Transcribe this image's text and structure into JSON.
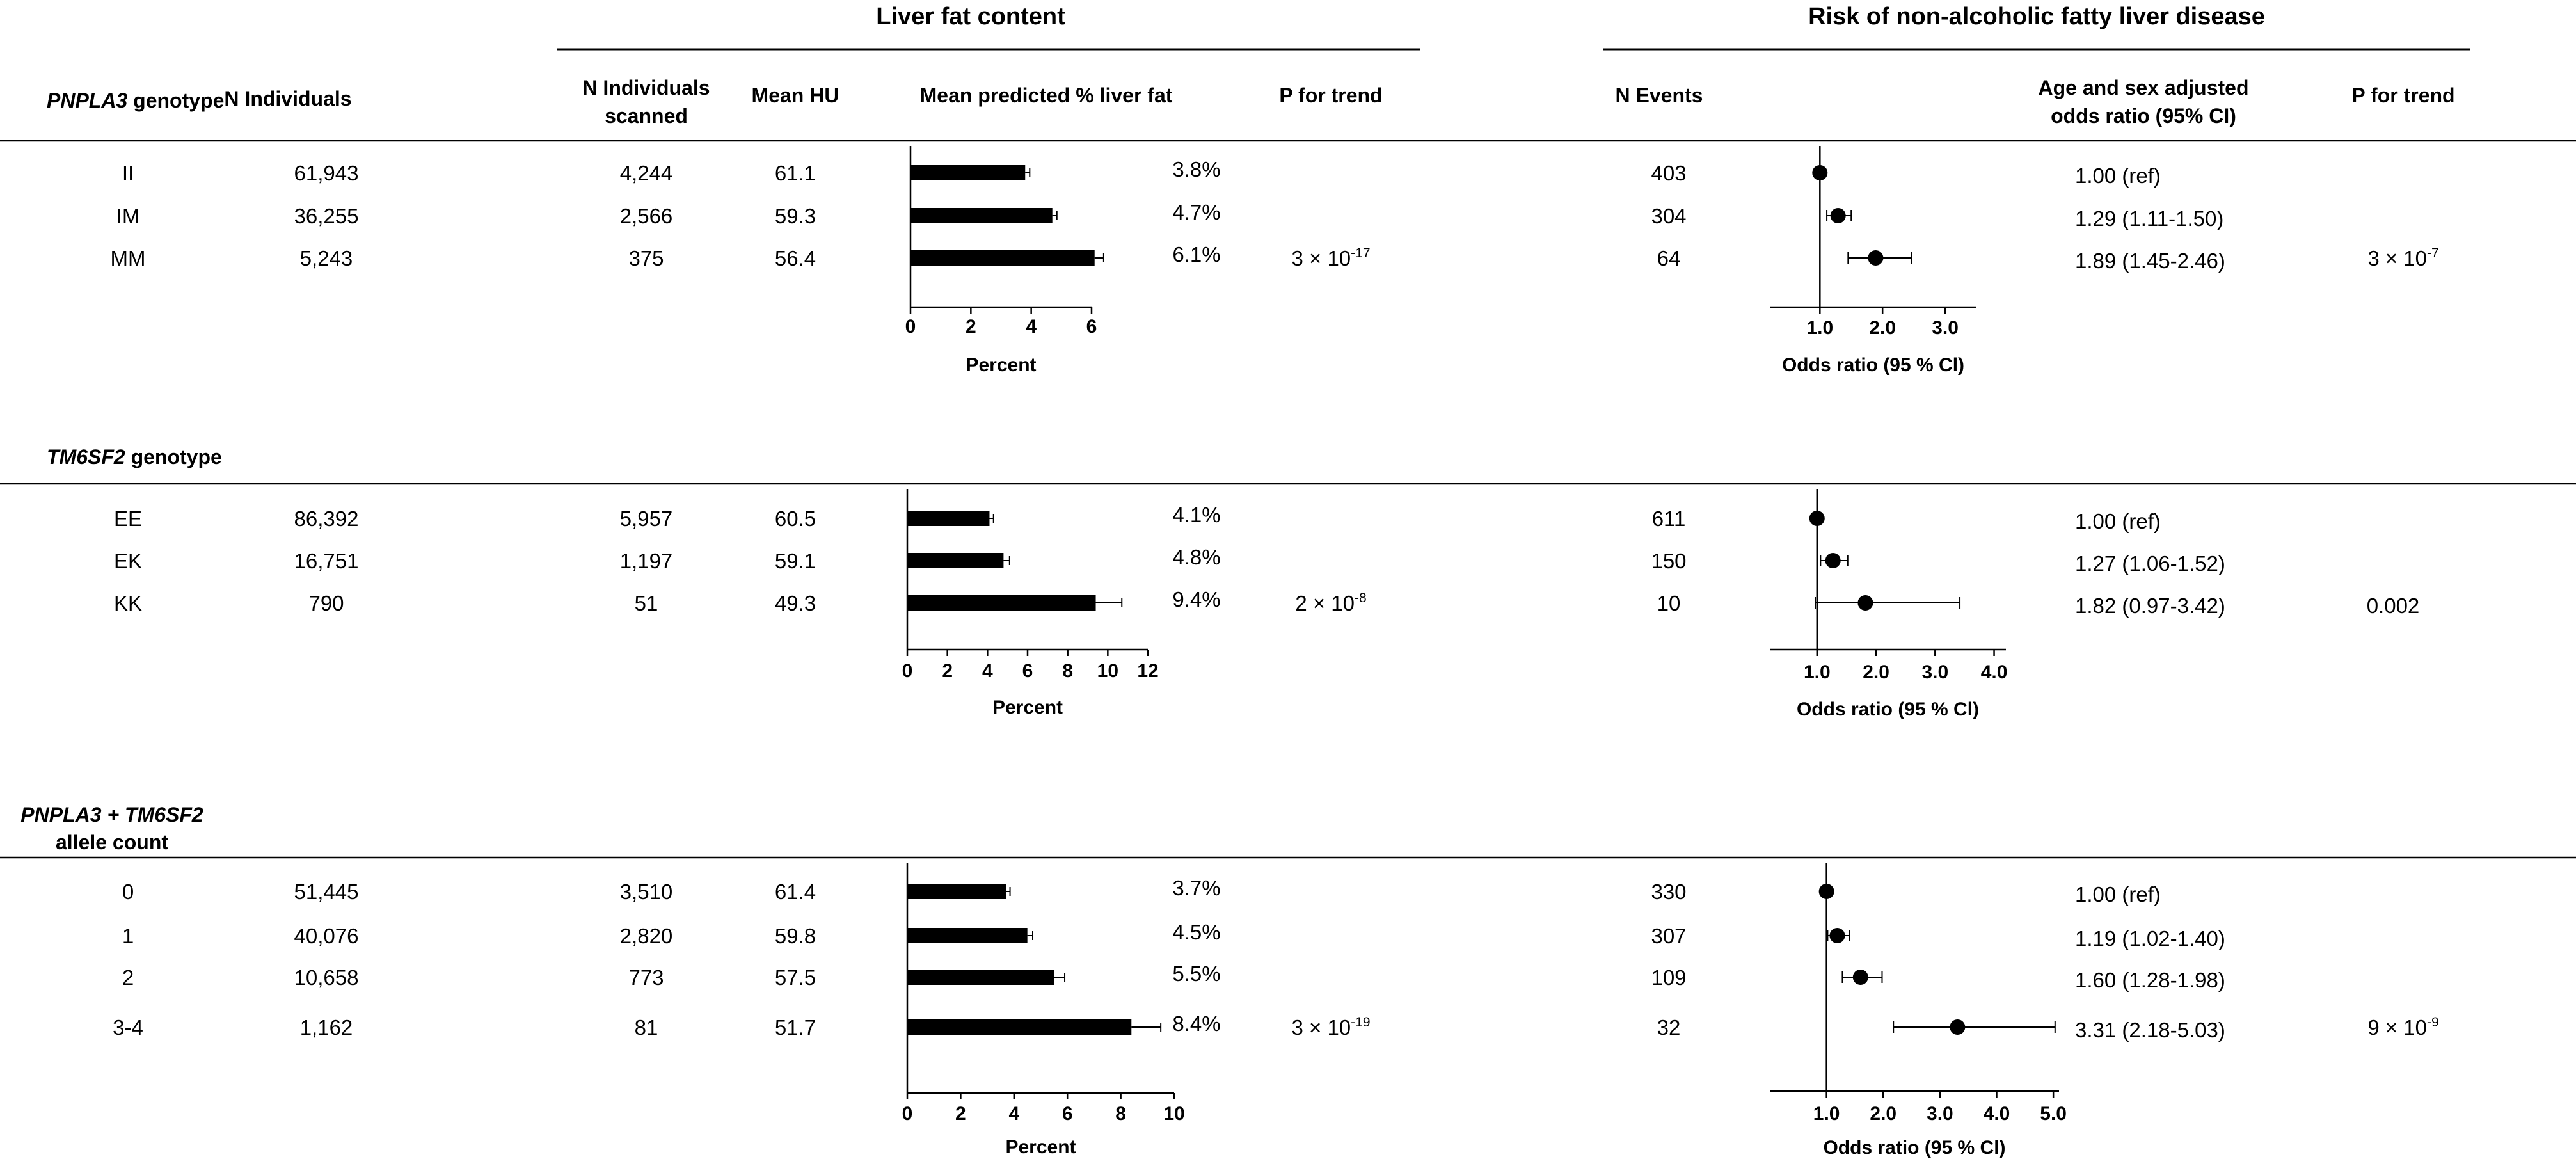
{
  "headers": {
    "liver_fat": "Liver fat content",
    "nafld_risk": "Risk of non-alcoholic fatty liver disease",
    "n_individuals": "N Individuals",
    "n_scanned_1": "N Individuals",
    "n_scanned_2": "scanned",
    "mean_hu": "Mean HU",
    "mean_pred": "Mean predicted % liver fat",
    "p_trend": "P for trend",
    "n_events": "N Events",
    "or_1": "Age and sex adjusted",
    "or_2": "odds ratio (95% CI)",
    "p_trend2": "P for trend"
  },
  "pct_suffix": "%",
  "chart_data": [
    {
      "type": "bar",
      "orientation": "horizontal",
      "group": "PNPLA3 genotype",
      "categories": [
        "II",
        "IM",
        "MM"
      ],
      "values": [
        3.8,
        4.7,
        6.1
      ],
      "error": [
        0.15,
        0.15,
        0.3
      ],
      "xlabel": "Percent",
      "xlim": [
        0,
        6
      ],
      "ticks": [
        0,
        2,
        4,
        6
      ]
    },
    {
      "type": "scatter",
      "subtype": "forest",
      "group": "PNPLA3 genotype",
      "categories": [
        "II",
        "IM",
        "MM"
      ],
      "or": [
        1.0,
        1.29,
        1.89
      ],
      "ci_low": [
        1.0,
        1.11,
        1.45
      ],
      "ci_high": [
        1.0,
        1.5,
        2.46
      ],
      "xlabel": "Odds ratio (95 % Cl)",
      "xlim": [
        0.2,
        3.5
      ],
      "ticks": [
        "1.0",
        "2.0",
        "3.0"
      ]
    },
    {
      "type": "bar",
      "orientation": "horizontal",
      "group": "TM6SF2 genotype",
      "categories": [
        "EE",
        "EK",
        "KK"
      ],
      "values": [
        4.1,
        4.8,
        9.4
      ],
      "error": [
        0.2,
        0.3,
        1.3
      ],
      "xlabel": "Percent",
      "xlim": [
        0,
        12
      ],
      "ticks": [
        0,
        2,
        4,
        6,
        8,
        10,
        12
      ]
    },
    {
      "type": "scatter",
      "subtype": "forest",
      "group": "TM6SF2 genotype",
      "categories": [
        "EE",
        "EK",
        "KK"
      ],
      "or": [
        1.0,
        1.27,
        1.82
      ],
      "ci_low": [
        1.0,
        1.06,
        0.97
      ],
      "ci_high": [
        1.0,
        1.52,
        3.42
      ],
      "xlabel": "Odds ratio (95 % Cl)",
      "xlim": [
        0.2,
        4.2
      ],
      "ticks": [
        "1.0",
        "2.0",
        "3.0",
        "4.0"
      ]
    },
    {
      "type": "bar",
      "orientation": "horizontal",
      "group": "PNPLA3 + TM6SF2 allele count",
      "categories": [
        "0",
        "1",
        "2",
        "3-4"
      ],
      "values": [
        3.7,
        4.5,
        5.5,
        8.4
      ],
      "error": [
        0.15,
        0.2,
        0.4,
        1.1
      ],
      "xlabel": "Percent",
      "xlim": [
        0,
        10
      ],
      "ticks": [
        0,
        2,
        4,
        6,
        8,
        10
      ]
    },
    {
      "type": "scatter",
      "subtype": "forest",
      "group": "PNPLA3 + TM6SF2 allele count",
      "categories": [
        "0",
        "1",
        "2",
        "3-4"
      ],
      "or": [
        1.0,
        1.19,
        1.6,
        3.31
      ],
      "ci_low": [
        1.0,
        1.02,
        1.28,
        2.18
      ],
      "ci_high": [
        1.0,
        1.4,
        1.98,
        5.03
      ],
      "xlabel": "Odds ratio (95 % Cl)",
      "xlim": [
        0.0,
        5.1
      ],
      "ticks": [
        "1.0",
        "2.0",
        "3.0",
        "4.0",
        "5.0"
      ]
    }
  ],
  "groups": [
    {
      "title": "genotype",
      "gene": "PNPLA3",
      "rows": [
        {
          "label": "II",
          "n": "61,943",
          "scanned": "4,244",
          "hu": "61.1",
          "pct": "3.8%",
          "events": "403",
          "or_text": "1.00 (ref)"
        },
        {
          "label": "IM",
          "n": "36,255",
          "scanned": "2,566",
          "hu": "59.3",
          "pct": "4.7%",
          "events": "304",
          "or_text": "1.29 (1.11-1.50)"
        },
        {
          "label": "MM",
          "n": "5,243",
          "scanned": "375",
          "hu": "56.4",
          "pct": "6.1%",
          "events": "64",
          "or_text": "1.89 (1.45-2.46)"
        }
      ],
      "p_fat": {
        "base": "3 × 10",
        "exp": "-17"
      },
      "p_or": {
        "base": "3 × 10",
        "exp": "-7"
      }
    },
    {
      "title": "genotype",
      "gene": "TM6SF2",
      "rows": [
        {
          "label": "EE",
          "n": "86,392",
          "scanned": "5,957",
          "hu": "60.5",
          "pct": "4.1%",
          "events": "611",
          "or_text": "1.00 (ref)"
        },
        {
          "label": "EK",
          "n": "16,751",
          "scanned": "1,197",
          "hu": "59.1",
          "pct": "4.8%",
          "events": "150",
          "or_text": "1.27 (1.06-1.52)"
        },
        {
          "label": "KK",
          "n": "790",
          "scanned": "51",
          "hu": "49.3",
          "pct": "9.4%",
          "events": "10",
          "or_text": "1.82 (0.97-3.42)"
        }
      ],
      "p_fat": {
        "base": "2 × 10",
        "exp": "-8"
      },
      "p_or_text": "0.002"
    },
    {
      "title": "PNPLA3 + TM6SF2",
      "title2": "allele count",
      "rows": [
        {
          "label": "0",
          "n": "51,445",
          "scanned": "3,510",
          "hu": "61.4",
          "pct": "3.7%",
          "events": "330",
          "or_text": "1.00 (ref)"
        },
        {
          "label": "1",
          "n": "40,076",
          "scanned": "2,820",
          "hu": "59.8",
          "pct": "4.5%",
          "events": "307",
          "or_text": "1.19 (1.02-1.40)"
        },
        {
          "label": "2",
          "n": "10,658",
          "scanned": "773",
          "hu": "57.5",
          "pct": "5.5%",
          "events": "109",
          "or_text": "1.60 (1.28-1.98)"
        },
        {
          "label": "3-4",
          "n": "1,162",
          "scanned": "81",
          "hu": "51.7",
          "pct": "8.4%",
          "events": "32",
          "or_text": "3.31 (2.18-5.03)"
        }
      ],
      "p_fat": {
        "base": "3 × 10",
        "exp": "-19"
      },
      "p_or": {
        "base": "9 × 10",
        "exp": "-9"
      }
    }
  ]
}
